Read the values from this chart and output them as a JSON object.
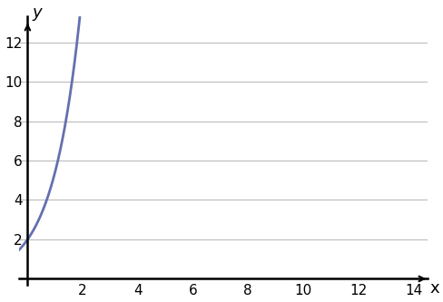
{
  "xlabel": "x",
  "ylabel": "y",
  "xlim": [
    -0.5,
    14.5
  ],
  "ylim": [
    -0.3,
    13.5
  ],
  "xlim_display": [
    0,
    14
  ],
  "ylim_display": [
    0,
    12
  ],
  "xticks": [
    0,
    2,
    4,
    6,
    8,
    10,
    12,
    14
  ],
  "yticks": [
    0,
    2,
    4,
    6,
    8,
    10,
    12
  ],
  "curve_color": "#6370b0",
  "curve_linewidth": 2.0,
  "equation_a": 2.0,
  "equation_k": 1.0,
  "x_start": -0.55,
  "x_end": 1.95,
  "grid_color": "#c0c0c0",
  "axis_color": "#000000",
  "label_fontsize": 13,
  "tick_fontsize": 11,
  "background_color": "#ffffff"
}
